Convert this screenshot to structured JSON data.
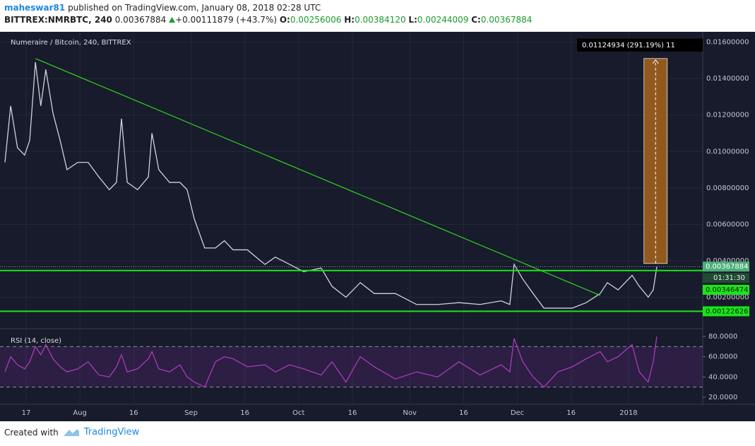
{
  "header": {
    "user": "maheswar81",
    "published": "published on TradingView.com, January 08, 2018 02:28 UTC",
    "symbol": "BITTREX:NMRBTC, 240",
    "last": "0.00367884",
    "change": "+0.00111879 (+43.7%)",
    "o_label": "O:",
    "o": "0.00256006",
    "h_label": "H:",
    "h": "0.00384120",
    "l_label": "L:",
    "l": "0.00244009",
    "c_label": "C:",
    "c": "0.00367884"
  },
  "footer": {
    "created": "Created with",
    "brand": "TradingView"
  },
  "chart_data": [
    {
      "type": "line",
      "title": "Numeraire / Bitcoin, 240, BITTREX",
      "color": "#d0d3dc",
      "x": [
        -5.9,
        -4.3,
        -2.4,
        -0.4,
        1.0,
        2.6,
        4.1,
        5.5,
        7.5,
        9.5,
        11.4,
        14.4,
        17.3,
        20.3,
        23.2,
        25.2,
        26.6,
        28.2,
        31.1,
        34.1,
        35.1,
        37.0,
        40.0,
        42.9,
        44.9,
        46.9,
        49.8,
        52.8,
        55.3,
        57.7,
        61.7,
        66.6,
        69.5,
        73.5,
        77.4,
        82.3,
        85.3,
        89.2,
        93.2,
        97.1,
        103.0,
        108.9,
        114.8,
        120.7,
        126.6,
        132.5,
        134.9,
        136.1,
        138.5,
        141.4,
        144.4,
        148.3,
        152.3,
        156.2,
        160.1,
        162.1,
        165.1,
        169.0,
        171.0,
        173.5,
        174.9,
        175.9
      ],
      "values": [
        0.0094,
        0.0125,
        0.0102,
        0.0098,
        0.0106,
        0.0149,
        0.0125,
        0.0145,
        0.0121,
        0.0106,
        0.009,
        0.0094,
        0.0094,
        0.0086,
        0.0079,
        0.0083,
        0.0118,
        0.0083,
        0.0079,
        0.0086,
        0.011,
        0.009,
        0.0083,
        0.0083,
        0.0079,
        0.0063,
        0.0047,
        0.0047,
        0.0051,
        0.0046,
        0.0046,
        0.0038,
        0.0042,
        0.0038,
        0.0034,
        0.0036,
        0.0026,
        0.002,
        0.0028,
        0.0022,
        0.0022,
        0.0016,
        0.0016,
        0.0017,
        0.0016,
        0.0018,
        0.0016,
        0.0038,
        0.003,
        0.0022,
        0.0014,
        0.0014,
        0.0014,
        0.0017,
        0.0022,
        0.0028,
        0.0024,
        0.0032,
        0.0026,
        0.002,
        0.0024,
        0.00367884
      ],
      "xlim": [
        -5.9,
        188.7
      ],
      "xticks": [
        {
          "value": 0,
          "label": "17"
        },
        {
          "value": 15,
          "label": "Aug"
        },
        {
          "value": 30,
          "label": "16"
        },
        {
          "value": 46,
          "label": "Sep"
        },
        {
          "value": 61,
          "label": "16"
        },
        {
          "value": 76,
          "label": "Oct"
        },
        {
          "value": 91,
          "label": "16"
        },
        {
          "value": 107,
          "label": "Nov"
        },
        {
          "value": 122,
          "label": "16"
        },
        {
          "value": 137,
          "label": "Dec"
        },
        {
          "value": 152,
          "label": "16"
        },
        {
          "value": 168,
          "label": "2018"
        }
      ],
      "ylim": [
        0.00035,
        0.01645
      ],
      "yticks": [
        {
          "value": 0.002,
          "label": "0.00200000"
        },
        {
          "value": 0.004,
          "label": "0.00400000"
        },
        {
          "value": 0.006,
          "label": "0.00600000"
        },
        {
          "value": 0.008,
          "label": "0.00800000"
        },
        {
          "value": 0.01,
          "label": "0.01000000"
        },
        {
          "value": 0.012,
          "label": "0.01200000"
        },
        {
          "value": 0.014,
          "label": "0.01400000"
        },
        {
          "value": 0.016,
          "label": "0.01600000"
        }
      ],
      "grid": true,
      "trend_line": {
        "color": "#2fd51f",
        "x": [
          2.6,
          160.1
        ],
        "values": [
          0.0151,
          0.0021
        ]
      },
      "levels": {
        "color": "#19e619",
        "values": [
          0.00346474,
          0.00122626
        ]
      },
      "last_price": 0.00367884,
      "countdown": "01:31:30",
      "measure": {
        "color": "#a8641c",
        "x": [
          172.3,
          178.8
        ],
        "from": 0.00385,
        "to": 0.0151,
        "label": "0.01124934 (291.19%) 11"
      }
    },
    {
      "type": "line",
      "title": "RSI (14, close)",
      "color": "#a93bb8",
      "x": [
        -5.9,
        -4.3,
        -2.4,
        -0.4,
        1.0,
        2.6,
        4.1,
        5.5,
        7.5,
        9.5,
        11.4,
        14.4,
        17.3,
        20.3,
        23.2,
        25.2,
        26.6,
        28.2,
        31.1,
        34.1,
        35.1,
        37.0,
        40.0,
        42.9,
        44.9,
        46.9,
        49.8,
        52.8,
        55.3,
        57.7,
        61.7,
        66.6,
        69.5,
        73.5,
        77.4,
        82.3,
        85.3,
        89.2,
        93.2,
        97.1,
        103.0,
        108.9,
        114.8,
        120.7,
        126.6,
        132.5,
        134.9,
        136.1,
        138.5,
        141.4,
        144.4,
        148.3,
        152.3,
        156.2,
        160.1,
        162.1,
        165.1,
        169.0,
        171.0,
        173.5,
        174.9,
        175.9
      ],
      "values": [
        45,
        60,
        52,
        48,
        55,
        70,
        62,
        72,
        58,
        50,
        45,
        48,
        55,
        42,
        40,
        50,
        62,
        45,
        48,
        58,
        65,
        48,
        45,
        52,
        40,
        35,
        30,
        55,
        60,
        58,
        50,
        52,
        45,
        52,
        48,
        42,
        55,
        35,
        60,
        50,
        38,
        45,
        40,
        55,
        42,
        52,
        45,
        78,
        55,
        40,
        30,
        45,
        50,
        58,
        65,
        55,
        60,
        72,
        45,
        35,
        55,
        80
      ],
      "ylim": [
        13.7,
        86.3
      ],
      "yticks": [
        {
          "value": 20,
          "label": "20.0000"
        },
        {
          "value": 40,
          "label": "40.0000"
        },
        {
          "value": 60,
          "label": "60.0000"
        },
        {
          "value": 80,
          "label": "80.0000"
        }
      ],
      "band": [
        30,
        70
      ]
    }
  ]
}
